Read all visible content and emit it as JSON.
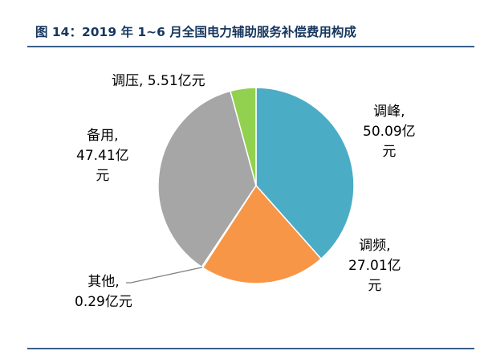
{
  "figure": {
    "title": "图 14：2019 年 1~6 月全国电力辅助服务补偿费用构成"
  },
  "chart_data": {
    "type": "pie",
    "unit": "亿元",
    "slices": [
      {
        "name": "调峰",
        "value": 50.09,
        "color": "#4bacc6",
        "label_lines": [
          "调峰,",
          "50.09亿",
          "元"
        ]
      },
      {
        "name": "调频",
        "value": 27.01,
        "color": "#f79646",
        "label_lines": [
          "调频,",
          "27.01亿",
          "元"
        ]
      },
      {
        "name": "其他",
        "value": 0.29,
        "color": "#8c8c8c",
        "label_lines": [
          "其他,",
          "0.29亿元"
        ]
      },
      {
        "name": "备用",
        "value": 47.41,
        "color": "#a6a6a6",
        "label_lines": [
          "备用,",
          "47.41亿",
          "元"
        ]
      },
      {
        "name": "调压",
        "value": 5.51,
        "color": "#92d050",
        "label_lines": [
          "调压, 5.51亿元"
        ]
      }
    ]
  }
}
